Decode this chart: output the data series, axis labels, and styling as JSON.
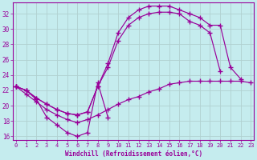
{
  "xlabel": "Windchill (Refroidissement éolien,°C)",
  "background_color": "#c5ecee",
  "line_color": "#990099",
  "grid_color": "#b0d0d0",
  "yticks": [
    16,
    18,
    20,
    22,
    24,
    26,
    28,
    30,
    32
  ],
  "xticks": [
    0,
    1,
    2,
    3,
    4,
    5,
    6,
    7,
    8,
    9,
    10,
    11,
    12,
    13,
    14,
    15,
    16,
    17,
    18,
    19,
    20,
    21,
    22,
    23
  ],
  "xlim": [
    -0.3,
    23.3
  ],
  "ylim": [
    15.5,
    33.5
  ],
  "curve_a_x": [
    0,
    1,
    2,
    3,
    4,
    5,
    6,
    7,
    8,
    9,
    10,
    11,
    12,
    13,
    14,
    15,
    16,
    17,
    18,
    19,
    20,
    21,
    22,
    23
  ],
  "curve_a_y": [
    22.5,
    21.5,
    20.5,
    19.5,
    18.8,
    18.2,
    17.8,
    18.2,
    18.8,
    19.5,
    20.2,
    20.8,
    21.2,
    21.8,
    22.2,
    22.8,
    23.0,
    23.2,
    23.2,
    23.2,
    23.2,
    23.2,
    23.2,
    23.0
  ],
  "curve_b_x": [
    0,
    1,
    2,
    3,
    4,
    5,
    6,
    7,
    8,
    9,
    10,
    11,
    12,
    13,
    14,
    15,
    16,
    17,
    18,
    19,
    20
  ],
  "curve_b_y": [
    22.5,
    22.0,
    21.0,
    20.2,
    19.5,
    19.0,
    18.8,
    19.2,
    22.5,
    25.0,
    28.5,
    30.5,
    31.5,
    32.0,
    32.2,
    32.2,
    32.0,
    31.0,
    30.5,
    29.5,
    24.5
  ],
  "curve_c_x": [
    0,
    1,
    2,
    3,
    4,
    5,
    6,
    7,
    8,
    9,
    10,
    11,
    12,
    13,
    14,
    15,
    16,
    17,
    18,
    19,
    20,
    21,
    22
  ],
  "curve_c_y": [
    22.5,
    22.0,
    21.0,
    20.2,
    19.5,
    19.0,
    18.8,
    19.2,
    22.5,
    25.5,
    29.5,
    31.5,
    32.5,
    33.0,
    33.0,
    33.0,
    32.5,
    32.0,
    31.5,
    30.5,
    30.5,
    25.0,
    23.5
  ],
  "curve_d_x": [
    0,
    1,
    2,
    3,
    4,
    5,
    6,
    7,
    8,
    9
  ],
  "curve_d_y": [
    22.5,
    22.0,
    20.8,
    18.5,
    17.5,
    16.5,
    16.0,
    16.5,
    23.0,
    18.5
  ]
}
